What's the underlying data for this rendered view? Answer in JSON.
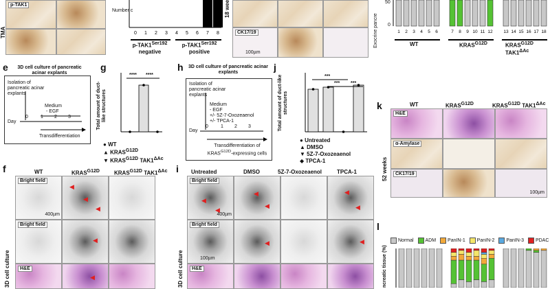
{
  "panel_letters": {
    "e": "e",
    "f": "f",
    "g": "g",
    "h": "h",
    "i": "i",
    "j": "j",
    "k": "k",
    "l": "l"
  },
  "top": {
    "ptak1_label": "p-TAK1",
    "tma_label": "TMA",
    "number_axis": "Number c",
    "neg_label": "p-TAK1",
    "neg_sup": "Ser192",
    "neg_word": "negative",
    "pos_label": "p-TAK1",
    "pos_sup": "Ser192",
    "pos_word": "positive",
    "x_ticks": [
      "0",
      "1",
      "2",
      "3",
      "4",
      "5",
      "6",
      "7",
      "8"
    ],
    "weeks_label": "18 weeks",
    "ck_label": "CK17/19",
    "scale": "100µm",
    "exocrine_axis": "Exocrine pancre",
    "y_tick_50": "50",
    "y_tick_0": "0",
    "wt_ticks": [
      "1",
      "2",
      "3",
      "4",
      "5",
      "6"
    ],
    "kras_ticks": [
      "7",
      "8",
      "9",
      "10",
      "11",
      "12"
    ],
    "tak_ticks": [
      "13",
      "14",
      "15",
      "16",
      "17",
      "18"
    ],
    "wt": "WT",
    "kras": "KRAS",
    "kras_sup": "G12D",
    "tak": "KRAS",
    "tak_sup": "G12D",
    "tak_suffix": " TAK1",
    "tak_sup2": "ΔAc"
  },
  "panel_e": {
    "title": "3D cell culture of pancreatic acinar explants",
    "isolation": "Isolation of pancreatic acinar explants",
    "medium": "Medium",
    "egf": "- EGF",
    "day": "Day",
    "days": [
      "0",
      "1",
      "2",
      "3"
    ],
    "transdiff": "Transdifferentiation"
  },
  "panel_g": {
    "ylabel": "Total amount of duct-like structures",
    "sig1": "****",
    "sig2": "****",
    "legend": [
      "WT",
      "KRAS",
      "KRAS"
    ],
    "legend_sup": [
      "",
      "G12D",
      "G12D"
    ],
    "legend_suffix": [
      "",
      "",
      " TAK1"
    ],
    "legend_sup2": [
      "",
      "",
      "ΔAc"
    ]
  },
  "panel_h": {
    "title": "3D cell culture of pancreatic acinar explants",
    "isolation": "Isolation of pancreatic acinar explants",
    "medium": "Medium",
    "egf": "- EGF",
    "oxo": "+/- 5Z-7-Oxozeaenol",
    "tpca": "+/- TPCA-1",
    "day": "Day",
    "days": [
      "0",
      "1",
      "2",
      "3"
    ],
    "transdiff": "Transdifferentiation of KRAS",
    "transdiff_sup": "G12D",
    "transdiff_end": "-expressing cells"
  },
  "panel_j": {
    "ylabel": "Total amount of duct-like structures",
    "sig": [
      "***",
      "***",
      "***"
    ],
    "legend": [
      "Untreated",
      "DMSO",
      "5Z-7-Oxozeaenol",
      "TPCA-1"
    ]
  },
  "panel_k": {
    "cols": [
      "WT",
      "KRAS",
      "KRAS"
    ],
    "col_sup": [
      "",
      "G12D",
      "G12D"
    ],
    "col_suffix": [
      "",
      "",
      " TAK1"
    ],
    "col_sup2": [
      "",
      "",
      "ΔAc"
    ],
    "rows": [
      "H&E",
      "α-Amylase",
      "CK17/19"
    ],
    "weeks": "52 weeks",
    "scale": "100µm"
  },
  "panel_f": {
    "cols": [
      "WT",
      "KRAS",
      "KRAS"
    ],
    "col_sup": [
      "",
      "G12D",
      "G12D"
    ],
    "col_suffix": [
      "",
      "",
      " TAK1"
    ],
    "col_sup2": [
      "",
      "",
      "ΔAc"
    ],
    "rows": [
      "Bright field",
      "Bright field",
      "H&E"
    ],
    "side": "3D cell culture",
    "scale": "400µm"
  },
  "panel_i": {
    "cols": [
      "Untreated",
      "DMSO",
      "5Z-7-Oxozeaenol",
      "TPCA-1"
    ],
    "rows": [
      "Bright field",
      "Bright field",
      "H&E"
    ],
    "side": "3D cell culture",
    "scale": "400µm",
    "scale2": "100µm"
  },
  "panel_l": {
    "legend": [
      "Normal",
      "ADM",
      "PanIN-1",
      "PanIN-2",
      "PanIN-3",
      "PDAC"
    ],
    "colors": [
      "#c8c8c8",
      "#55c234",
      "#f2a93a",
      "#f4e66a",
      "#5aa9e0",
      "#e02020"
    ],
    "ylabel": "ncreatic tissue (%)"
  },
  "chart_data": [
    {
      "type": "bar",
      "categories": [
        "0",
        "1",
        "2",
        "3",
        "4",
        "5",
        "6",
        "7",
        "8"
      ],
      "values": [
        0,
        0,
        0,
        0,
        0,
        0,
        0,
        45,
        45
      ],
      "xlabel": "",
      "ylabel": "Number c"
    },
    {
      "type": "bar",
      "categories": [
        "1",
        "2",
        "3",
        "4",
        "5",
        "6",
        "7",
        "8",
        "9",
        "10",
        "11",
        "12",
        "13",
        "14",
        "15",
        "16",
        "17",
        "18"
      ],
      "series": [
        {
          "name": "ADM",
          "values": [
            0,
            0,
            0,
            0,
            0,
            0,
            100,
            100,
            0,
            0,
            0,
            100,
            0,
            0,
            0,
            0,
            0,
            0
          ]
        },
        {
          "name": "Normal",
          "values": [
            100,
            100,
            100,
            100,
            100,
            100,
            0,
            0,
            100,
            100,
            100,
            0,
            100,
            100,
            100,
            100,
            100,
            100
          ]
        }
      ],
      "ylabel": "Exocrine pancre"
    },
    {
      "type": "bar",
      "categories": [
        "WT",
        "KRAS G12D",
        "KRAS G12D TAK1 ΔAc"
      ],
      "values": [
        0,
        68,
        0
      ],
      "ylabel": "Total amount of duct-like structures"
    },
    {
      "type": "bar",
      "categories": [
        "Untreated",
        "DMSO",
        "5Z-7-Oxozeaenol",
        "TPCA-1"
      ],
      "values": [
        62,
        65,
        0,
        68
      ],
      "ylabel": "Total amount of duct-like structures"
    }
  ]
}
